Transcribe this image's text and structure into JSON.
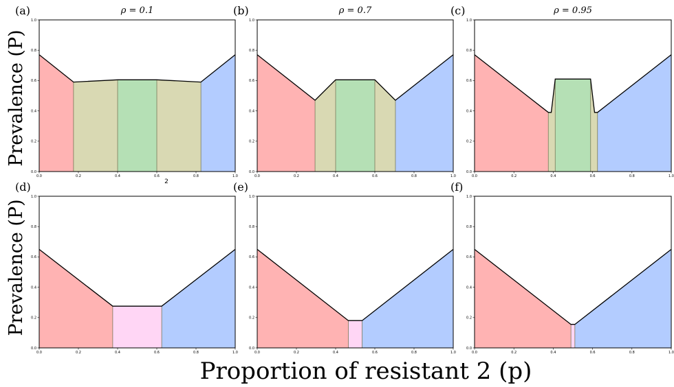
{
  "figure": {
    "ylabel": "Prevalence (P)",
    "xlabel": "Proportion of resistant 2 (p)",
    "stray_label": "2",
    "colors": {
      "red": "#ffb3b3",
      "olive": "#d9d9b3",
      "green": "#b5e0b5",
      "blue": "#b3ccff",
      "pink": "#ffd6f5"
    }
  },
  "chart_data": [
    {
      "panel": "(a)",
      "title": "ρ = 0.1",
      "type": "area",
      "xlim": [
        0,
        1
      ],
      "ylim": [
        0,
        1
      ],
      "xticks": [
        "0.0",
        "0.2",
        "0.4",
        "0.6",
        "0.8",
        "1.0"
      ],
      "yticks": [
        "0.0",
        "0.2",
        "0.4",
        "0.6",
        "0.8",
        "1.0"
      ],
      "curve": {
        "x": [
          0,
          0.175,
          0.4,
          0.6,
          0.825,
          1.0
        ],
        "y": [
          0.77,
          0.59,
          0.605,
          0.605,
          0.59,
          0.77
        ]
      },
      "regions": [
        {
          "color": "red",
          "x": [
            0,
            0.175
          ]
        },
        {
          "color": "olive",
          "x": [
            0.175,
            0.4
          ]
        },
        {
          "color": "green",
          "x": [
            0.4,
            0.6
          ]
        },
        {
          "color": "olive",
          "x": [
            0.6,
            0.825
          ]
        },
        {
          "color": "blue",
          "x": [
            0.825,
            1.0
          ]
        }
      ]
    },
    {
      "panel": "(b)",
      "title": "ρ = 0.7",
      "type": "area",
      "xlim": [
        0,
        1
      ],
      "ylim": [
        0,
        1
      ],
      "xticks": [
        "0.0",
        "0.2",
        "0.4",
        "0.6",
        "0.8",
        "1.0"
      ],
      "yticks": [
        "0.0",
        "0.2",
        "0.4",
        "0.6",
        "0.8",
        "1.0"
      ],
      "curve": {
        "x": [
          0,
          0.295,
          0.4,
          0.6,
          0.705,
          1.0
        ],
        "y": [
          0.77,
          0.47,
          0.605,
          0.605,
          0.47,
          0.77
        ]
      },
      "regions": [
        {
          "color": "red",
          "x": [
            0,
            0.295
          ]
        },
        {
          "color": "olive",
          "x": [
            0.295,
            0.4
          ]
        },
        {
          "color": "green",
          "x": [
            0.4,
            0.6
          ]
        },
        {
          "color": "olive",
          "x": [
            0.6,
            0.705
          ]
        },
        {
          "color": "blue",
          "x": [
            0.705,
            1.0
          ]
        }
      ]
    },
    {
      "panel": "(c)",
      "title": "ρ = 0.95",
      "type": "area",
      "xlim": [
        0,
        1
      ],
      "ylim": [
        0,
        1
      ],
      "xticks": [
        "0.0",
        "0.2",
        "0.4",
        "0.6",
        "0.8",
        "1.0"
      ],
      "yticks": [
        "0.0",
        "0.2",
        "0.4",
        "0.6",
        "0.8",
        "1.0"
      ],
      "curve": {
        "x": [
          0,
          0.375,
          0.39,
          0.41,
          0.59,
          0.61,
          0.625,
          1.0
        ],
        "y": [
          0.77,
          0.39,
          0.39,
          0.61,
          0.61,
          0.39,
          0.39,
          0.77
        ]
      },
      "regions": [
        {
          "color": "red",
          "x": [
            0,
            0.375
          ]
        },
        {
          "color": "olive",
          "x": [
            0.375,
            0.41
          ]
        },
        {
          "color": "green",
          "x": [
            0.41,
            0.59
          ]
        },
        {
          "color": "olive",
          "x": [
            0.59,
            0.625
          ]
        },
        {
          "color": "blue",
          "x": [
            0.625,
            1.0
          ]
        }
      ]
    },
    {
      "panel": "(d)",
      "title": "",
      "type": "area",
      "xlim": [
        0,
        1
      ],
      "ylim": [
        0,
        1
      ],
      "xticks": [
        "0.0",
        "0.2",
        "0.4",
        "0.6",
        "0.8",
        "1.0"
      ],
      "yticks": [
        "0.0",
        "0.2",
        "0.4",
        "0.6",
        "0.8",
        "1.0"
      ],
      "curve": {
        "x": [
          0,
          0.375,
          0.625,
          1.0
        ],
        "y": [
          0.65,
          0.275,
          0.275,
          0.65
        ]
      },
      "regions": [
        {
          "color": "red",
          "x": [
            0,
            0.375
          ]
        },
        {
          "color": "pink",
          "x": [
            0.375,
            0.625
          ]
        },
        {
          "color": "blue",
          "x": [
            0.625,
            1.0
          ]
        }
      ]
    },
    {
      "panel": "(e)",
      "title": "",
      "type": "area",
      "xlim": [
        0,
        1
      ],
      "ylim": [
        0,
        1
      ],
      "xticks": [
        "0.0",
        "0.2",
        "0.4",
        "0.6",
        "0.8",
        "1.0"
      ],
      "yticks": [
        "0.0",
        "0.2",
        "0.4",
        "0.6",
        "0.8",
        "1.0"
      ],
      "curve": {
        "x": [
          0,
          0.465,
          0.535,
          1.0
        ],
        "y": [
          0.65,
          0.18,
          0.18,
          0.65
        ]
      },
      "regions": [
        {
          "color": "red",
          "x": [
            0,
            0.465
          ]
        },
        {
          "color": "pink",
          "x": [
            0.465,
            0.535
          ]
        },
        {
          "color": "blue",
          "x": [
            0.535,
            1.0
          ]
        }
      ]
    },
    {
      "panel": "(f)",
      "title": "",
      "type": "area",
      "xlim": [
        0,
        1
      ],
      "ylim": [
        0,
        1
      ],
      "xticks": [
        "0.0",
        "0.2",
        "0.4",
        "0.6",
        "0.8",
        "1.0"
      ],
      "yticks": [
        "0.0",
        "0.2",
        "0.4",
        "0.6",
        "0.8",
        "1.0"
      ],
      "curve": {
        "x": [
          0,
          0.49,
          0.51,
          1.0
        ],
        "y": [
          0.65,
          0.155,
          0.155,
          0.65
        ]
      },
      "regions": [
        {
          "color": "red",
          "x": [
            0,
            0.49
          ]
        },
        {
          "color": "pink",
          "x": [
            0.49,
            0.51
          ]
        },
        {
          "color": "blue",
          "x": [
            0.51,
            1.0
          ]
        }
      ]
    }
  ]
}
